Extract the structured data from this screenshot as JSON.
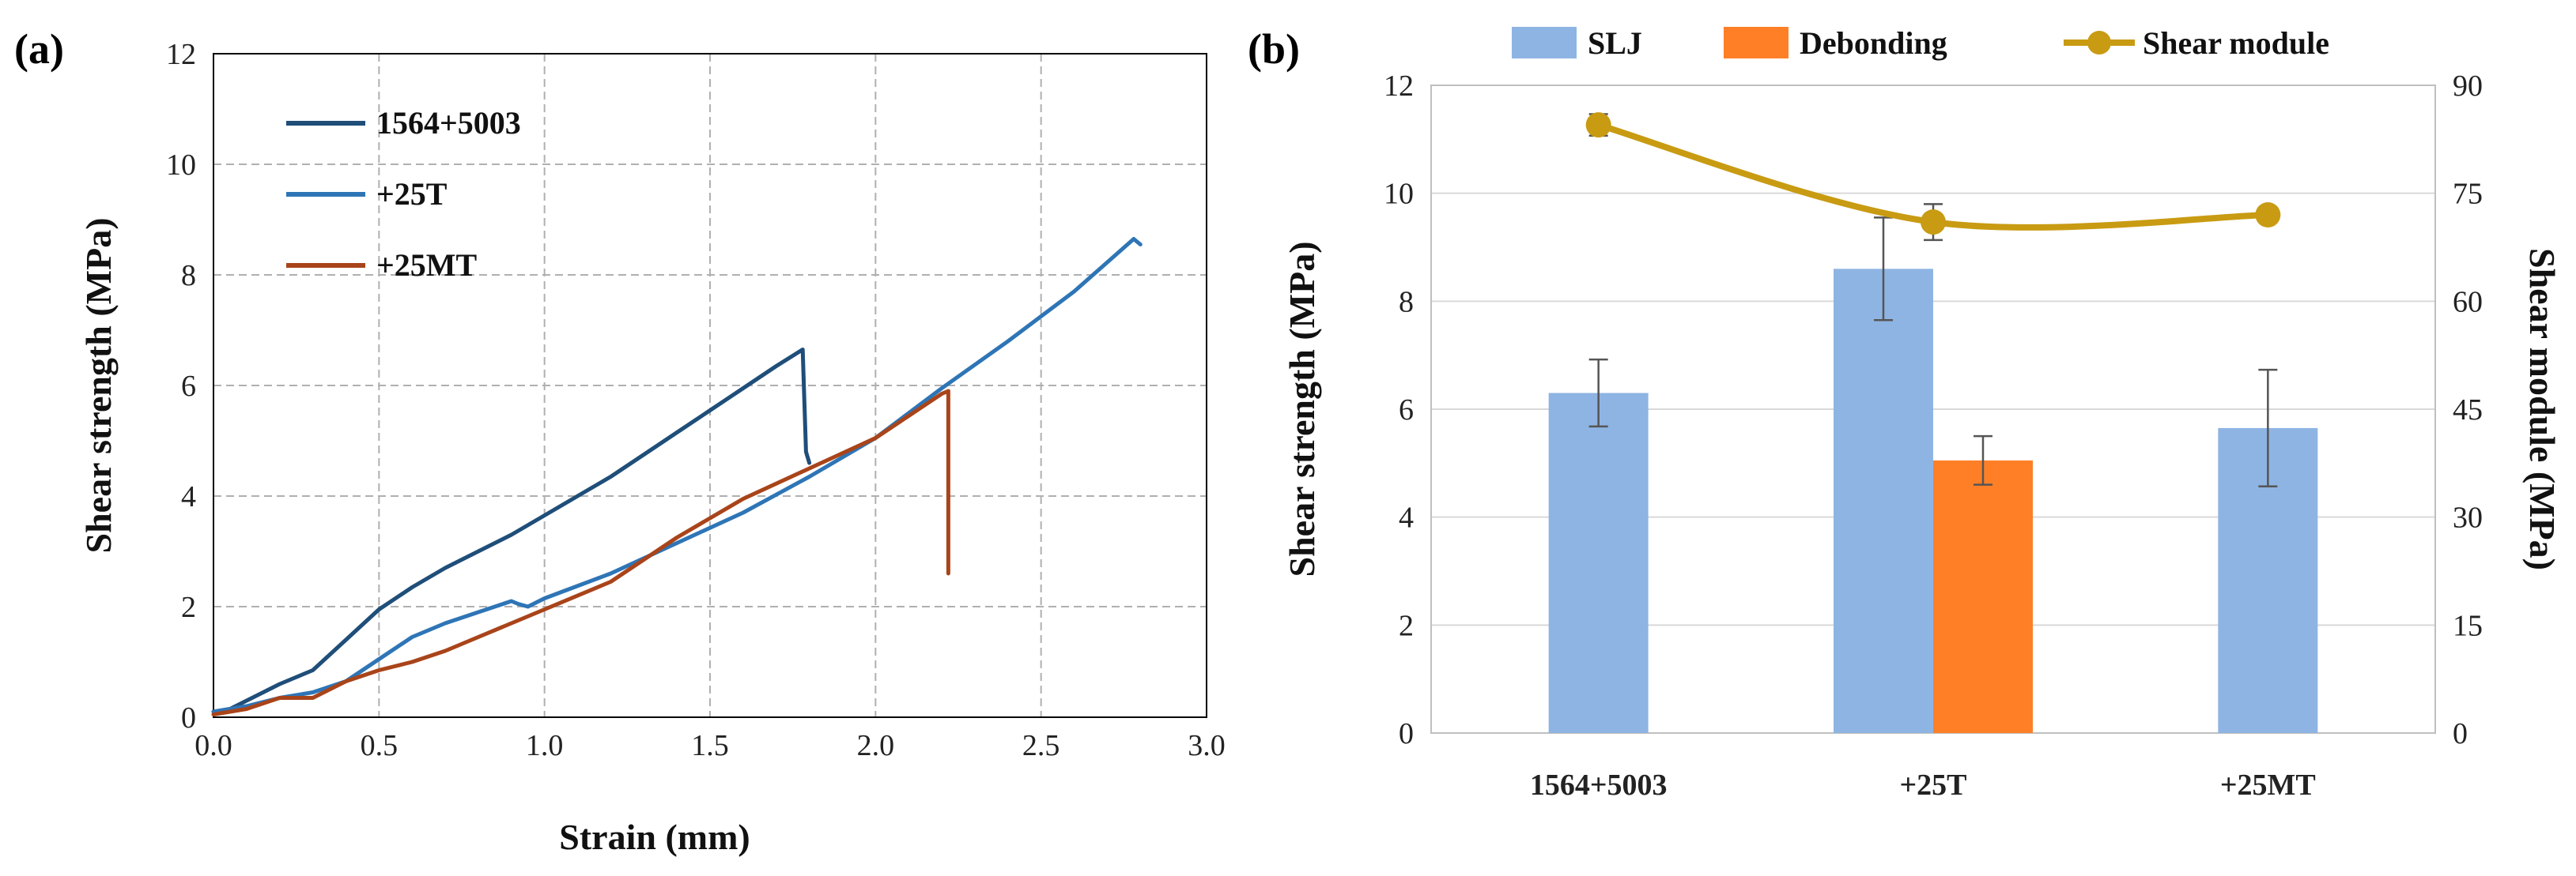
{
  "chart_data": [
    {
      "panel_label": "(a)",
      "type": "line",
      "xlabel": "Strain (mm)",
      "ylabel": "Shear strength (MPa)",
      "xlim": [
        0,
        3.0
      ],
      "ylim": [
        0,
        12
      ],
      "xticks": [
        "0.0",
        "0.5",
        "1.0",
        "1.5",
        "2.0",
        "2.5",
        "3.0"
      ],
      "yticks": [
        "0",
        "2",
        "4",
        "6",
        "8",
        "10",
        "12"
      ],
      "grid": true,
      "legend": "top-left",
      "series": [
        {
          "name": "1564+5003",
          "color": "#1f4e79",
          "x": [
            0,
            0.05,
            0.1,
            0.15,
            0.2,
            0.3,
            0.4,
            0.5,
            0.6,
            0.7,
            0.8,
            0.9,
            1.0,
            1.1,
            1.2,
            1.3,
            1.4,
            1.5,
            1.6,
            1.7,
            1.78,
            1.79,
            1.8
          ],
          "y": [
            0.1,
            0.15,
            0.3,
            0.45,
            0.6,
            0.85,
            1.4,
            1.95,
            2.35,
            2.7,
            3.0,
            3.3,
            3.65,
            4.0,
            4.35,
            4.75,
            5.15,
            5.55,
            5.95,
            6.35,
            6.65,
            4.8,
            4.6
          ]
        },
        {
          "name": "+25T",
          "color": "#2e75b6",
          "x": [
            0,
            0.1,
            0.2,
            0.3,
            0.4,
            0.5,
            0.6,
            0.7,
            0.8,
            0.9,
            0.92,
            0.95,
            1.0,
            1.2,
            1.4,
            1.6,
            1.8,
            2.0,
            2.2,
            2.4,
            2.6,
            2.78,
            2.8
          ],
          "y": [
            0.1,
            0.2,
            0.35,
            0.45,
            0.65,
            1.05,
            1.45,
            1.7,
            1.9,
            2.1,
            2.05,
            2.0,
            2.15,
            2.6,
            3.15,
            3.7,
            4.35,
            5.05,
            5.95,
            6.8,
            7.7,
            8.65,
            8.55
          ]
        },
        {
          "name": "+25MT",
          "color": "#a9441a",
          "x": [
            0,
            0.1,
            0.2,
            0.3,
            0.4,
            0.5,
            0.6,
            0.7,
            0.8,
            0.9,
            1.0,
            1.2,
            1.4,
            1.6,
            1.8,
            2.0,
            2.1,
            2.2,
            2.22,
            2.22
          ],
          "y": [
            0.05,
            0.15,
            0.35,
            0.35,
            0.65,
            0.85,
            1.0,
            1.2,
            1.45,
            1.7,
            1.95,
            2.45,
            3.25,
            3.95,
            4.5,
            5.05,
            5.45,
            5.85,
            5.9,
            2.6
          ]
        }
      ]
    },
    {
      "panel_label": "(b)",
      "type": "bar",
      "categories": [
        "1564+5003",
        "+25T",
        "+25MT"
      ],
      "ylabel": "Shear strength (MPa)",
      "ylabel_right": "Shear module (MPa)",
      "ylim": [
        0,
        12
      ],
      "ylim_right": [
        0,
        90
      ],
      "yticks": [
        "0",
        "2",
        "4",
        "6",
        "8",
        "10",
        "12"
      ],
      "yticks_right": [
        "0",
        "15",
        "30",
        "45",
        "60",
        "75",
        "90"
      ],
      "grid": true,
      "legend": "top",
      "series": [
        {
          "name": "SLJ",
          "color": "#8eb4e3",
          "values": [
            6.3,
            8.6,
            5.65
          ],
          "errors": [
            0.62,
            0.95,
            1.08
          ]
        },
        {
          "name": "Debonding",
          "color": "#ff7f27",
          "values": [
            null,
            5.05,
            null
          ],
          "errors": [
            null,
            0.45,
            null
          ]
        }
      ],
      "line_series": {
        "name": "Shear module",
        "color": "#c89b12",
        "axis": "right",
        "values": [
          84.5,
          71.0,
          72.0
        ],
        "errors": [
          1.5,
          2.5,
          0.6
        ]
      }
    }
  ]
}
